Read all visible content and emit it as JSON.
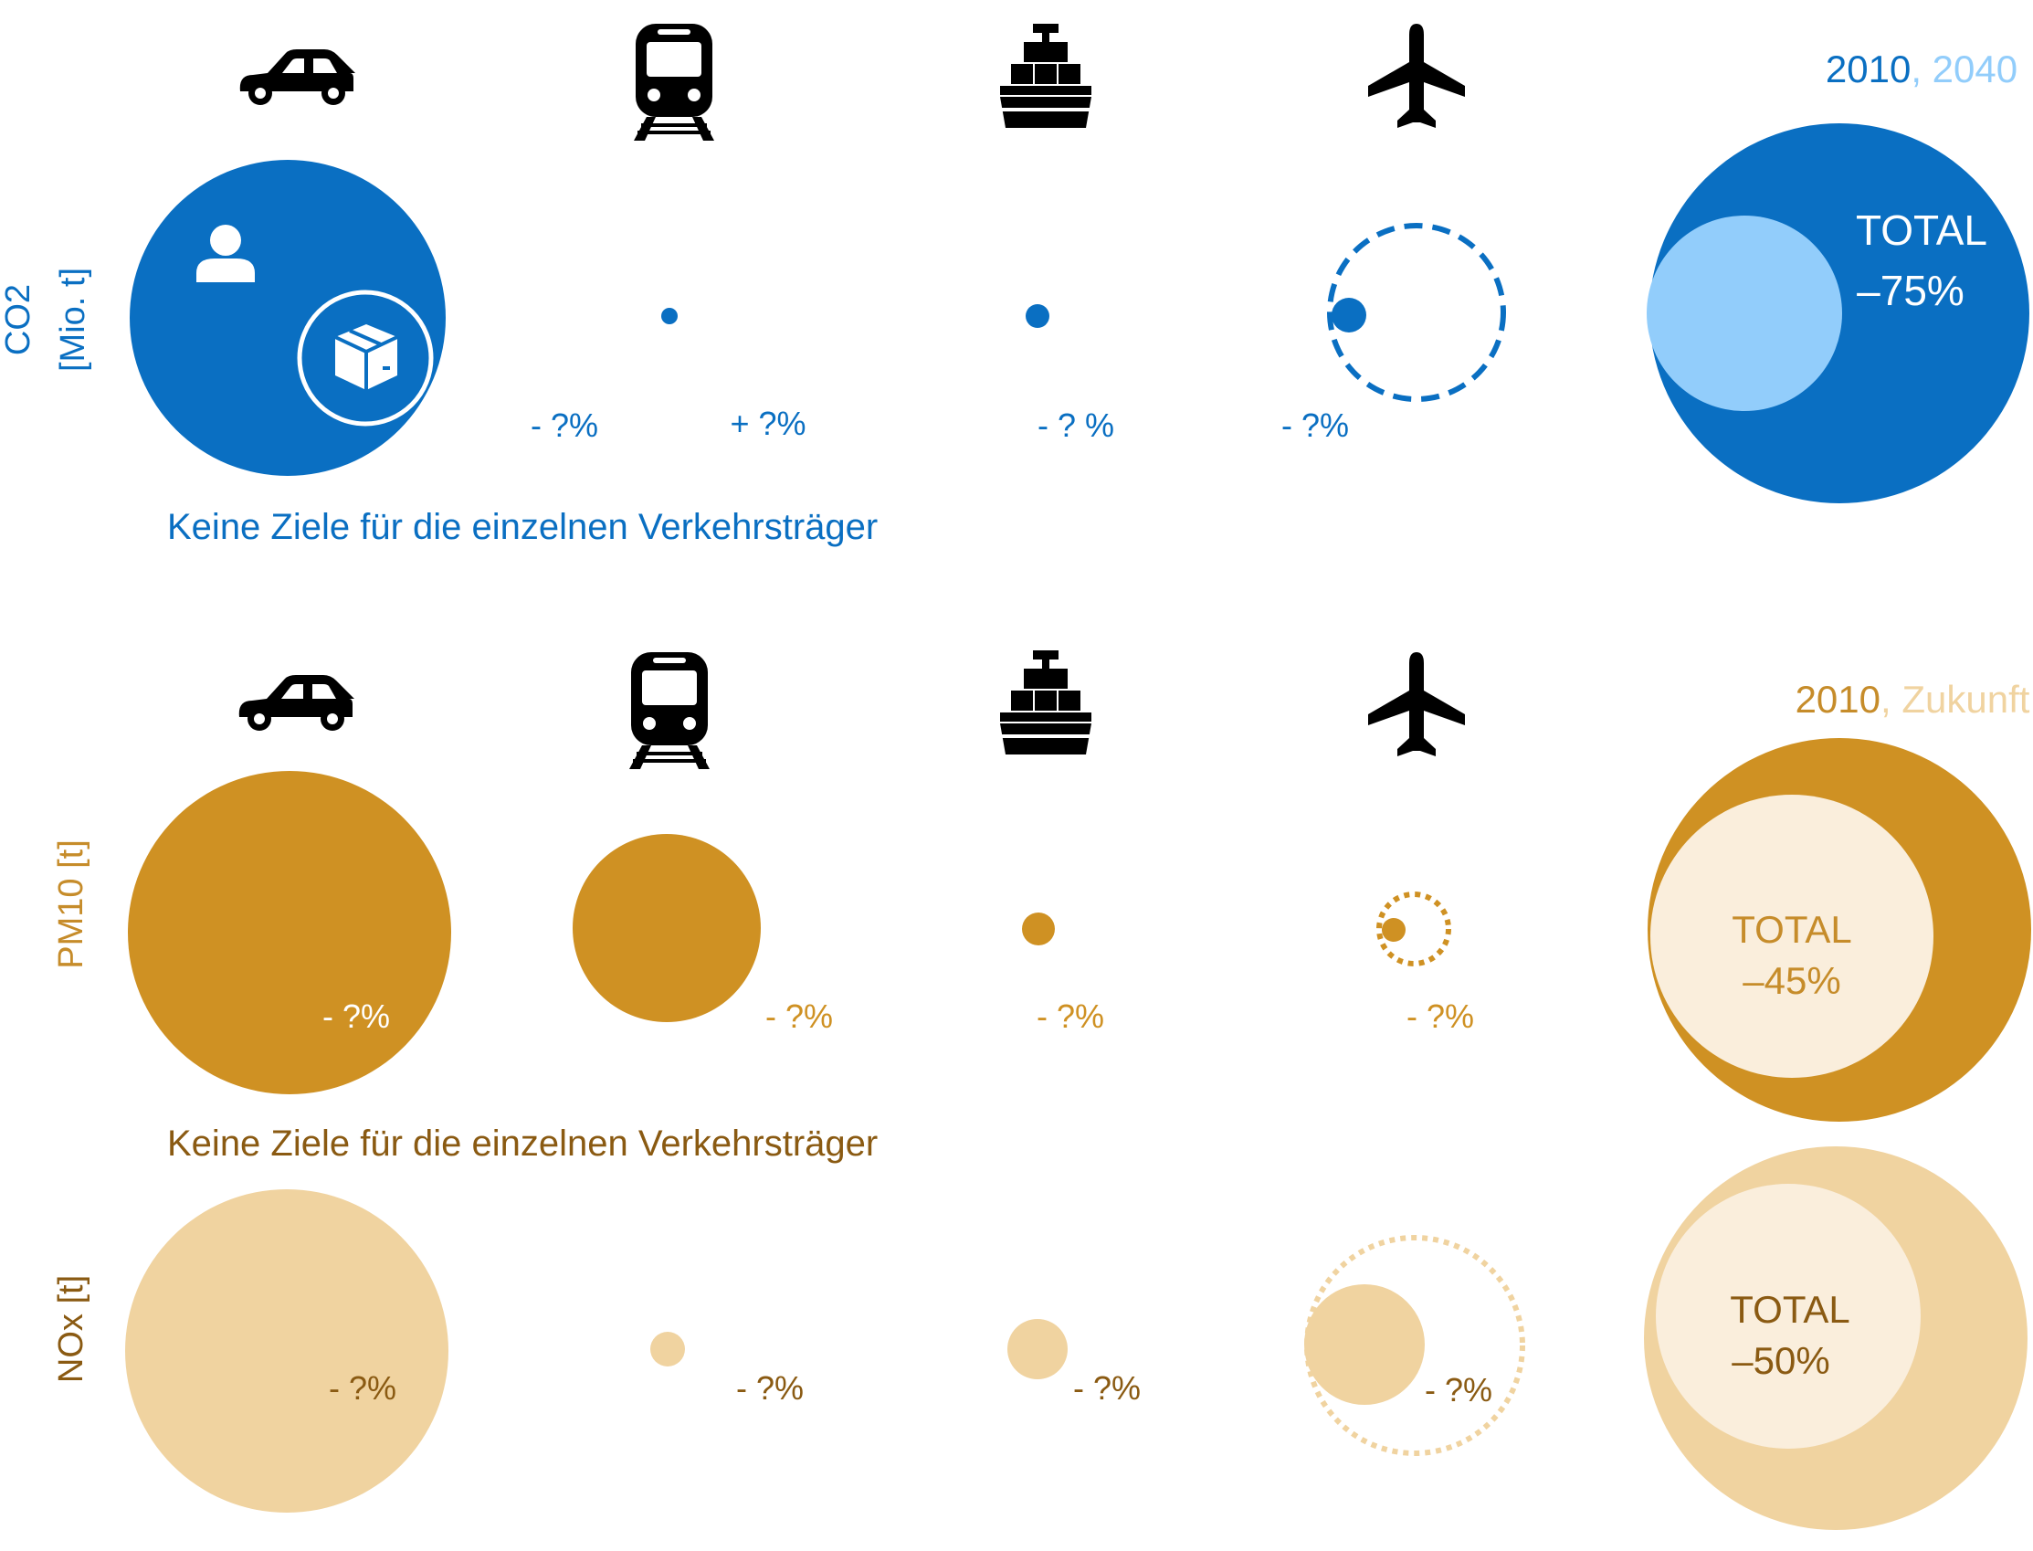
{
  "colors": {
    "co2_dark": "#0A6FC2",
    "co2_light": "#92CDFB",
    "pm10_dark": "#CF9123",
    "pm10_label": "#C68C2A",
    "nox_light": "#F0D3A0",
    "nox_text": "#8A5A12",
    "cream": "#FAEEDC",
    "white": "#FFFFFF",
    "black": "#000000"
  },
  "icons": {
    "transport": [
      "car-icon",
      "train-icon",
      "ship-icon",
      "airplane-icon"
    ],
    "co2_car_inner": [
      "person-icon",
      "package-icon"
    ]
  },
  "co2": {
    "axis_label_line1": "CO2",
    "axis_label_line2": "[Mio. t]",
    "legend_2010": "2010",
    "legend_sep": ",",
    "legend_target": "2040",
    "total_label": "TOTAL",
    "total_change": "–75%",
    "changes": [
      "- ?%",
      "+ ?%",
      "- ? %",
      "- ?%"
    ],
    "note": "Keine Ziele für die einzelnen Verkehrsträger"
  },
  "pm10": {
    "axis_label": "PM10 [t]",
    "legend_2010": "2010",
    "legend_sep": ",",
    "legend_target": "Zukunft",
    "total_label": "TOTAL",
    "total_change": "–45%",
    "changes": [
      "- ?%",
      "- ?%",
      "- ?%",
      "- ?%"
    ],
    "note": "Keine Ziele für die einzelnen Verkehrsträger"
  },
  "nox": {
    "axis_label": "NOx [t]",
    "total_label": "TOTAL",
    "total_change": "–50%",
    "changes": [
      "- ?%",
      "- ?%",
      "- ?%",
      "- ?%"
    ]
  }
}
